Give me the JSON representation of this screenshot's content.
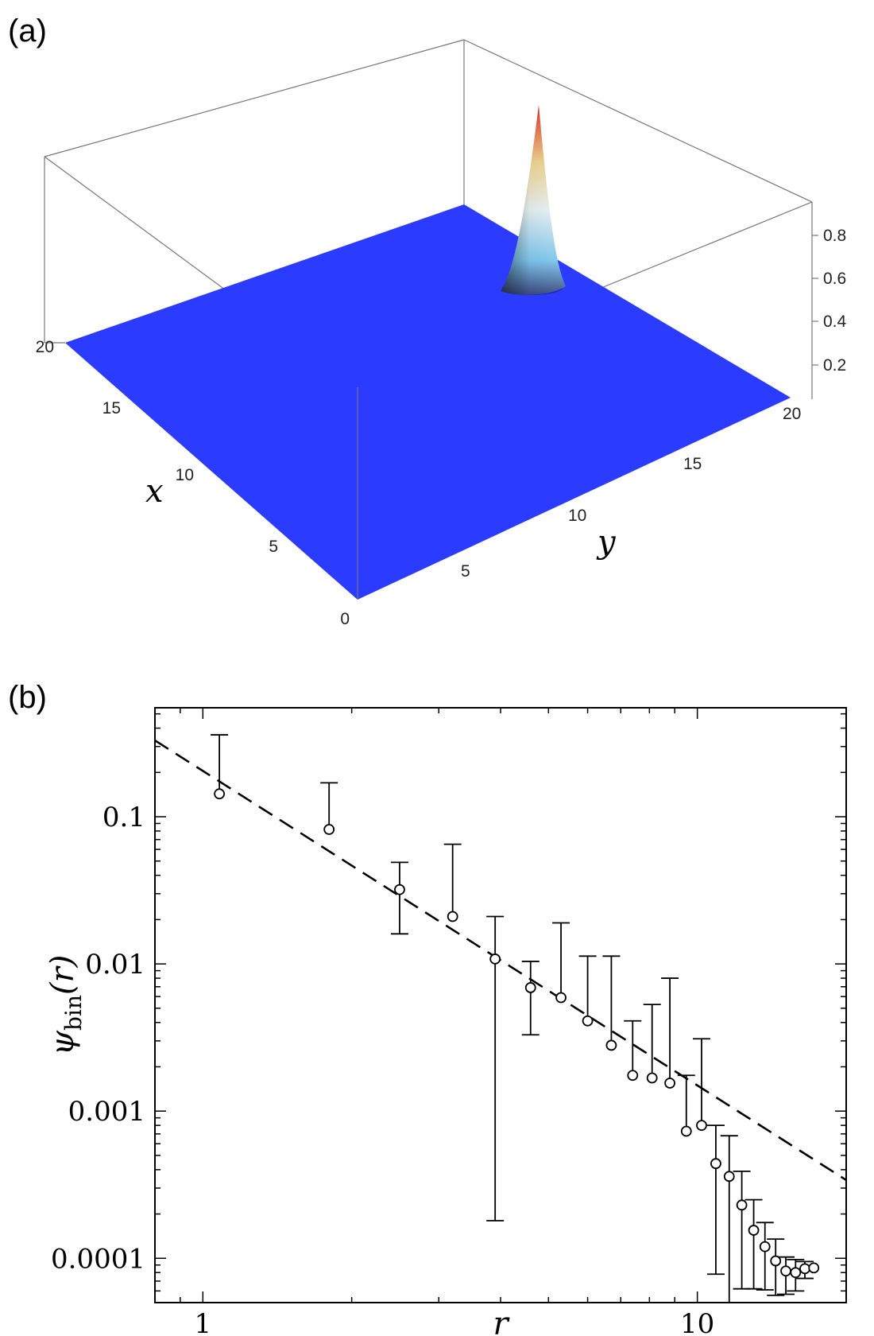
{
  "chart_data": [
    {
      "panel_label": "(a)",
      "type": "surface3d",
      "x_axis": {
        "label": "x",
        "range": [
          0,
          20
        ],
        "ticks": [
          "0",
          "5",
          "10",
          "15",
          "20"
        ]
      },
      "y_axis": {
        "label": "y",
        "range": [
          0,
          20
        ],
        "ticks": [
          "5",
          "10",
          "15",
          "20"
        ]
      },
      "z_axis": {
        "label": "",
        "range": [
          0,
          0.95
        ],
        "ticks": [
          "0.2",
          "0.4",
          "0.6",
          "0.8"
        ]
      },
      "peak": {
        "x": 16,
        "y": 13,
        "z": 0.92
      },
      "colors": {
        "base": "#2b3bff",
        "peak_top": "#e0302a",
        "peak_mid": "#f5e6a8",
        "peak_low": "#9fd9f5"
      }
    },
    {
      "panel_label": "(b)",
      "type": "scatter",
      "xlabel": "r",
      "ylabel": "ψ",
      "ylabel_sub": "bin",
      "ylabel_arg": "(r)",
      "x_scale": "log",
      "y_scale": "log",
      "xlim": [
        0.8,
        20
      ],
      "ylim": [
        5e-05,
        0.55
      ],
      "x_ticks": [
        {
          "value": 1,
          "label": "1"
        },
        {
          "value": 10,
          "label": "10"
        }
      ],
      "y_ticks": [
        {
          "value": 0.1,
          "label": "0.1"
        },
        {
          "value": 0.01,
          "label": "0.01"
        },
        {
          "value": 0.001,
          "label": "0.001"
        },
        {
          "value": 0.0001,
          "label": "0.0001"
        }
      ],
      "points": [
        {
          "x": 1.08,
          "y": 0.143,
          "y_upper": 0.36
        },
        {
          "x": 1.8,
          "y": 0.082,
          "y_upper": 0.17
        },
        {
          "x": 2.5,
          "y": 0.032,
          "y_upper": 0.049,
          "y_lower": 0.016
        },
        {
          "x": 3.2,
          "y": 0.021,
          "y_upper": 0.065
        },
        {
          "x": 3.9,
          "y": 0.0108,
          "y_upper": 0.021,
          "y_lower": 0.00018
        },
        {
          "x": 4.6,
          "y": 0.0069,
          "y_upper": 0.0104,
          "y_lower": 0.0033
        },
        {
          "x": 5.3,
          "y": 0.0059,
          "y_upper": 0.019
        },
        {
          "x": 6.0,
          "y": 0.0041,
          "y_upper": 0.0113
        },
        {
          "x": 6.7,
          "y": 0.0028,
          "y_upper": 0.0113
        },
        {
          "x": 7.4,
          "y": 0.00175,
          "y_upper": 0.0041
        },
        {
          "x": 8.1,
          "y": 0.00168,
          "y_upper": 0.0053
        },
        {
          "x": 8.8,
          "y": 0.00155,
          "y_upper": 0.008
        },
        {
          "x": 9.5,
          "y": 0.00073,
          "y_upper": 0.00175
        },
        {
          "x": 10.2,
          "y": 0.0008,
          "y_upper": 0.0031
        },
        {
          "x": 10.9,
          "y": 0.00044,
          "y_upper": 0.0008,
          "y_lower": 7.8e-05
        },
        {
          "x": 11.6,
          "y": 0.00036,
          "y_upper": 0.00068,
          "y_lower": 4e-05
        },
        {
          "x": 12.3,
          "y": 0.00023,
          "y_upper": 0.00039,
          "y_lower": 6.2e-05
        },
        {
          "x": 13.0,
          "y": 0.000155,
          "y_upper": 0.00025,
          "y_lower": 6.2e-05
        },
        {
          "x": 13.7,
          "y": 0.00012,
          "y_upper": 0.000175,
          "y_lower": 6.1e-05
        },
        {
          "x": 14.4,
          "y": 9.6e-05,
          "y_upper": 0.000135,
          "y_lower": 5.6e-05
        },
        {
          "x": 15.1,
          "y": 8.2e-05,
          "y_upper": 0.000102,
          "y_lower": 5.7e-05
        },
        {
          "x": 15.8,
          "y": 8e-05,
          "y_upper": 9.8e-05,
          "y_lower": 6e-05
        },
        {
          "x": 16.5,
          "y": 8.5e-05,
          "y_upper": 9.5e-05,
          "y_lower": 7.3e-05
        },
        {
          "x": 17.2,
          "y": 8.6e-05
        }
      ],
      "fit_line": {
        "style": "dashed",
        "from": {
          "x": 0.8,
          "y": 0.33
        },
        "to": {
          "x": 20,
          "y": 0.00034
        }
      }
    }
  ]
}
